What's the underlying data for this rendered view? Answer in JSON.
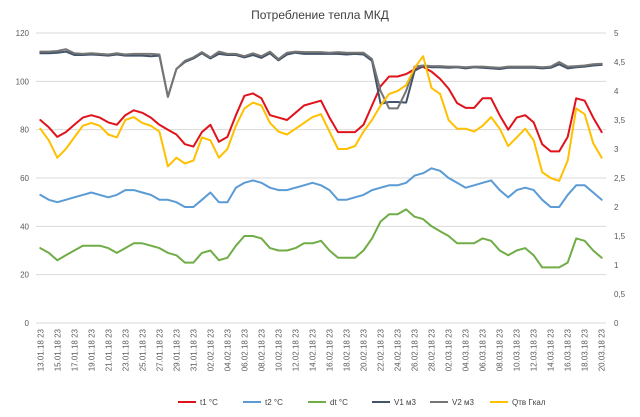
{
  "chart_data": {
    "type": "line",
    "title": "Потребление тепла МКД",
    "x": [
      "13.01.18 23",
      "14.01.18 23",
      "15.01.18 23",
      "16.01.18 23",
      "17.01.18 23",
      "18.01.18 23",
      "19.01.18 23",
      "20.01.18 23",
      "21.01.18 23",
      "22.01.18 23",
      "23.01.18 23",
      "24.01.18 23",
      "25.01.18 23",
      "26.01.18 23",
      "27.01.18 23",
      "28.01.18 23",
      "29.01.18 23",
      "30.01.18 23",
      "31.01.18 23",
      "01.02.18 23",
      "02.02.18 23",
      "03.02.18 23",
      "04.02.18 23",
      "05.02.18 23",
      "06.02.18 23",
      "07.02.18 23",
      "08.02.18 23",
      "09.02.18 23",
      "10.02.18 23",
      "11.02.18 23",
      "12.02.18 23",
      "13.02.18 23",
      "14.02.18 23",
      "15.02.18 23",
      "16.02.18 23",
      "17.02.18 23",
      "18.02.18 23",
      "19.02.18 23",
      "20.02.18 23",
      "21.02.18 23",
      "22.02.18 23",
      "23.02.18 23",
      "24.02.18 23",
      "25.02.18 23",
      "26.02.18 23",
      "27.02.18 23",
      "28.02.18 23",
      "01.03.18 23",
      "02.03.18 23",
      "03.03.18 23",
      "04.03.18 23",
      "05.03.18 23",
      "06.03.18 23",
      "07.03.18 23",
      "08.03.18 23",
      "09.03.18 23",
      "10.03.18 23",
      "11.03.18 23",
      "12.03.18 23",
      "13.03.18 23",
      "14.03.18 23",
      "15.03.18 23",
      "16.03.18 23",
      "17.03.18 23",
      "18.03.18 23",
      "19.03.18 23",
      "20.03.18 23"
    ],
    "x_tick_labels": [
      "13.01.18 23",
      "15.01.18 23",
      "17.01.18 23",
      "19.01.18 23",
      "21.01.18 23",
      "23.01.18 23",
      "25.01.18 23",
      "27.01.18 23",
      "29.01.18 23",
      "31.01.18 23",
      "02.02.18 23",
      "04.02.18 23",
      "06.02.18 23",
      "08.02.18 23",
      "10.02.18 23",
      "12.02.18 23",
      "14.02.18 23",
      "16.02.18 23",
      "18.02.18 23",
      "20.02.18 23",
      "22.02.18 23",
      "24.02.18 23",
      "26.02.18 23",
      "28.02.18 23",
      "02.03.18 23",
      "04.03.18 23",
      "06.03.18 23",
      "08.03.18 23",
      "10.03.18 23",
      "12.03.18 23",
      "14.03.18 23",
      "16.03.18 23",
      "18.03.18 23",
      "20.03.18 23"
    ],
    "y_left": {
      "min": 0,
      "max": 120,
      "step": 20,
      "tick_labels": [
        "0",
        "20",
        "40",
        "60",
        "80",
        "100",
        "120"
      ]
    },
    "y_right": {
      "min": 0,
      "max": 5,
      "step": 0.5,
      "tick_labels": [
        "0",
        "0,5",
        "1",
        "1,5",
        "2",
        "2,5",
        "3",
        "3,5",
        "4",
        "4,5",
        "5"
      ]
    },
    "grid": true,
    "legend_position": "bottom",
    "series": [
      {
        "name": "t1 °C",
        "axis": "left",
        "color": "#e0131b",
        "values": [
          84,
          81,
          77,
          79,
          82,
          85,
          86,
          85,
          83,
          82,
          86,
          88,
          87,
          85,
          82,
          80,
          78,
          74,
          73,
          79,
          82,
          75,
          77,
          86,
          94,
          95,
          93,
          86,
          85,
          84,
          87,
          90,
          91,
          92,
          85,
          79,
          79,
          79,
          82,
          90,
          98,
          102,
          102,
          103,
          105,
          106,
          104,
          101,
          97,
          91,
          89,
          89,
          93,
          93,
          86,
          80,
          85,
          86,
          83,
          74,
          71,
          71,
          77,
          93,
          92,
          85,
          79
        ]
      },
      {
        "name": "t2 °C",
        "axis": "left",
        "color": "#5b9bd5",
        "values": [
          53,
          51,
          50,
          51,
          52,
          53,
          54,
          53,
          52,
          53,
          55,
          55,
          54,
          53,
          51,
          51,
          50,
          48,
          48,
          51,
          54,
          50,
          50,
          56,
          58,
          59,
          58,
          56,
          55,
          55,
          56,
          57,
          58,
          57,
          55,
          51,
          51,
          52,
          53,
          55,
          56,
          57,
          57,
          58,
          61,
          62,
          64,
          63,
          60,
          58,
          56,
          57,
          58,
          59,
          55,
          52,
          55,
          56,
          55,
          51,
          48,
          48,
          53,
          57,
          57,
          54,
          51
        ]
      },
      {
        "name": "dt °C",
        "axis": "left",
        "color": "#70ad47",
        "values": [
          31,
          29,
          26,
          28,
          30,
          32,
          32,
          32,
          31,
          29,
          31,
          33,
          33,
          32,
          31,
          29,
          28,
          25,
          25,
          29,
          30,
          26,
          27,
          32,
          36,
          36,
          35,
          31,
          30,
          30,
          31,
          33,
          33,
          34,
          30,
          27,
          27,
          27,
          30,
          35,
          42,
          45,
          45,
          47,
          44,
          43,
          40,
          38,
          36,
          33,
          33,
          33,
          35,
          34,
          30,
          28,
          30,
          31,
          28,
          23,
          23,
          23,
          25,
          35,
          34,
          30,
          27
        ]
      },
      {
        "name": "V1 м3",
        "axis": "right",
        "color": "#44546a",
        "values": [
          4.65,
          4.65,
          4.66,
          4.68,
          4.62,
          4.62,
          4.63,
          4.62,
          4.61,
          4.63,
          4.61,
          4.61,
          4.61,
          4.6,
          4.61,
          3.9,
          4.38,
          4.5,
          4.56,
          4.65,
          4.56,
          4.64,
          4.62,
          4.62,
          4.58,
          4.62,
          4.57,
          4.65,
          4.53,
          4.63,
          4.66,
          4.64,
          4.64,
          4.64,
          4.64,
          4.64,
          4.63,
          4.64,
          4.63,
          4.52,
          3.78,
          3.81,
          3.81,
          3.8,
          4.35,
          4.43,
          4.41,
          4.41,
          4.4,
          4.41,
          4.39,
          4.41,
          4.4,
          4.39,
          4.38,
          4.4,
          4.4,
          4.4,
          4.4,
          4.39,
          4.4,
          4.46,
          4.39,
          4.41,
          4.42,
          4.44,
          4.45
        ]
      },
      {
        "name": "V2 м3",
        "axis": "right",
        "color": "#757575",
        "values": [
          4.68,
          4.68,
          4.69,
          4.72,
          4.65,
          4.64,
          4.65,
          4.64,
          4.63,
          4.65,
          4.63,
          4.64,
          4.64,
          4.64,
          4.63,
          3.9,
          4.38,
          4.52,
          4.58,
          4.67,
          4.58,
          4.68,
          4.64,
          4.64,
          4.6,
          4.65,
          4.6,
          4.68,
          4.55,
          4.66,
          4.68,
          4.67,
          4.67,
          4.67,
          4.66,
          4.67,
          4.66,
          4.66,
          4.66,
          4.55,
          4.0,
          3.7,
          3.7,
          4.0,
          4.42,
          4.44,
          4.43,
          4.43,
          4.42,
          4.42,
          4.41,
          4.42,
          4.42,
          4.41,
          4.4,
          4.42,
          4.42,
          4.42,
          4.42,
          4.41,
          4.42,
          4.5,
          4.42,
          4.43,
          4.44,
          4.46,
          4.47
        ]
      },
      {
        "name": "Qтв Гкал",
        "axis": "right",
        "color": "#ffc000",
        "values": [
          3.35,
          3.15,
          2.85,
          3.0,
          3.2,
          3.4,
          3.45,
          3.4,
          3.25,
          3.2,
          3.5,
          3.55,
          3.45,
          3.4,
          3.3,
          2.7,
          2.85,
          2.75,
          2.8,
          3.2,
          3.15,
          2.85,
          3.0,
          3.4,
          3.7,
          3.8,
          3.75,
          3.45,
          3.3,
          3.25,
          3.35,
          3.45,
          3.55,
          3.6,
          3.3,
          3.0,
          3.0,
          3.05,
          3.3,
          3.5,
          3.75,
          3.95,
          4.0,
          4.1,
          4.4,
          4.6,
          4.05,
          3.95,
          3.5,
          3.35,
          3.35,
          3.3,
          3.4,
          3.55,
          3.35,
          3.05,
          3.2,
          3.35,
          3.15,
          2.6,
          2.5,
          2.45,
          2.8,
          3.7,
          3.6,
          3.1,
          2.85
        ]
      }
    ]
  }
}
